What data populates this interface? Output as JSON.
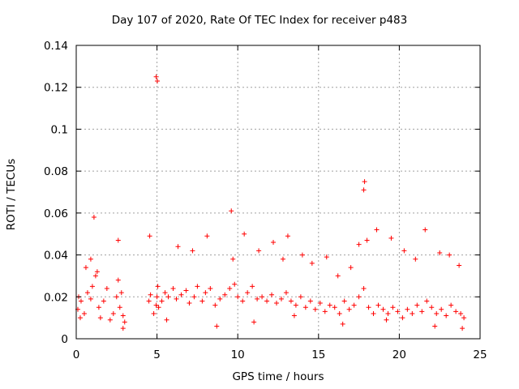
{
  "chart_data": {
    "type": "scatter",
    "title": "Day 107 of 2020, Rate Of TEC Index for receiver p483",
    "xlabel": "GPS time / hours",
    "ylabel": "ROTI / TECUs",
    "xlim": [
      0,
      25
    ],
    "ylim": [
      0,
      0.14
    ],
    "xticks": [
      0,
      5,
      10,
      15,
      20,
      25
    ],
    "xtick_labels": [
      "0",
      "5",
      "10",
      "15",
      "20",
      "25"
    ],
    "yticks": [
      0,
      0.02,
      0.04,
      0.06,
      0.08,
      0.1,
      0.12,
      0.14
    ],
    "ytick_labels": [
      "0",
      "0.02",
      "0.04",
      "0.06",
      "0.08",
      "0.1",
      "0.12",
      "0.14"
    ],
    "grid": true,
    "marker": "+",
    "color": "#ff0000",
    "series": [
      {
        "name": "ROTI",
        "x": [
          0.1,
          0.3,
          0.5,
          0.7,
          0.9,
          1.0,
          1.2,
          1.4,
          1.5,
          1.7,
          1.9,
          2.1,
          2.3,
          2.5,
          2.6,
          2.7,
          2.8,
          2.9,
          3.0,
          4.5,
          4.6,
          4.8,
          4.95,
          5.0,
          5.05,
          5.1,
          5.3,
          5.5,
          5.7,
          6.0,
          6.2,
          6.5,
          6.8,
          7.0,
          7.3,
          7.5,
          7.8,
          8.0,
          8.3,
          8.6,
          8.9,
          9.2,
          9.5,
          9.8,
          10.0,
          10.3,
          10.6,
          10.9,
          11.2,
          11.5,
          11.8,
          12.1,
          12.4,
          12.7,
          13.0,
          13.3,
          13.6,
          13.9,
          14.2,
          14.5,
          14.8,
          15.1,
          15.4,
          15.7,
          16.0,
          16.3,
          16.6,
          16.9,
          17.2,
          17.5,
          17.8,
          18.1,
          18.4,
          18.7,
          19.0,
          19.3,
          19.6,
          19.9,
          20.2,
          20.5,
          20.8,
          21.1,
          21.4,
          21.7,
          22.0,
          22.3,
          22.6,
          22.9,
          23.2,
          23.5,
          23.8,
          24.0,
          0.15,
          0.6,
          0.9,
          1.3,
          2.6,
          4.55,
          4.95,
          5.02,
          6.3,
          7.2,
          8.1,
          9.6,
          9.7,
          10.4,
          11.3,
          12.2,
          12.8,
          13.1,
          14.0,
          14.6,
          15.5,
          16.2,
          17.0,
          17.5,
          17.8,
          17.85,
          18.0,
          18.6,
          19.5,
          20.3,
          21.0,
          21.6,
          22.5,
          23.1,
          23.7,
          0.25,
          1.1,
          2.9,
          5.6,
          8.7,
          11.0,
          13.5,
          16.5,
          19.2,
          22.2,
          23.9
        ],
        "y": [
          0.014,
          0.018,
          0.012,
          0.022,
          0.019,
          0.025,
          0.03,
          0.015,
          0.01,
          0.018,
          0.024,
          0.009,
          0.012,
          0.02,
          0.028,
          0.015,
          0.022,
          0.011,
          0.008,
          0.018,
          0.021,
          0.012,
          0.016,
          0.02,
          0.025,
          0.015,
          0.018,
          0.022,
          0.02,
          0.024,
          0.019,
          0.021,
          0.023,
          0.017,
          0.02,
          0.025,
          0.018,
          0.022,
          0.024,
          0.016,
          0.019,
          0.021,
          0.024,
          0.026,
          0.02,
          0.018,
          0.022,
          0.025,
          0.019,
          0.02,
          0.018,
          0.021,
          0.017,
          0.019,
          0.022,
          0.018,
          0.016,
          0.02,
          0.015,
          0.018,
          0.014,
          0.017,
          0.013,
          0.016,
          0.015,
          0.012,
          0.018,
          0.014,
          0.016,
          0.02,
          0.024,
          0.015,
          0.012,
          0.016,
          0.014,
          0.012,
          0.015,
          0.013,
          0.01,
          0.014,
          0.012,
          0.016,
          0.013,
          0.018,
          0.015,
          0.012,
          0.014,
          0.011,
          0.016,
          0.013,
          0.012,
          0.01,
          0.02,
          0.034,
          0.038,
          0.032,
          0.047,
          0.049,
          0.125,
          0.123,
          0.044,
          0.042,
          0.049,
          0.061,
          0.038,
          0.05,
          0.042,
          0.046,
          0.038,
          0.049,
          0.04,
          0.036,
          0.039,
          0.03,
          0.034,
          0.045,
          0.071,
          0.075,
          0.047,
          0.052,
          0.048,
          0.042,
          0.038,
          0.052,
          0.041,
          0.04,
          0.035,
          0.01,
          0.058,
          0.005,
          0.009,
          0.006,
          0.008,
          0.011,
          0.007,
          0.009,
          0.006,
          0.005
        ]
      }
    ]
  }
}
